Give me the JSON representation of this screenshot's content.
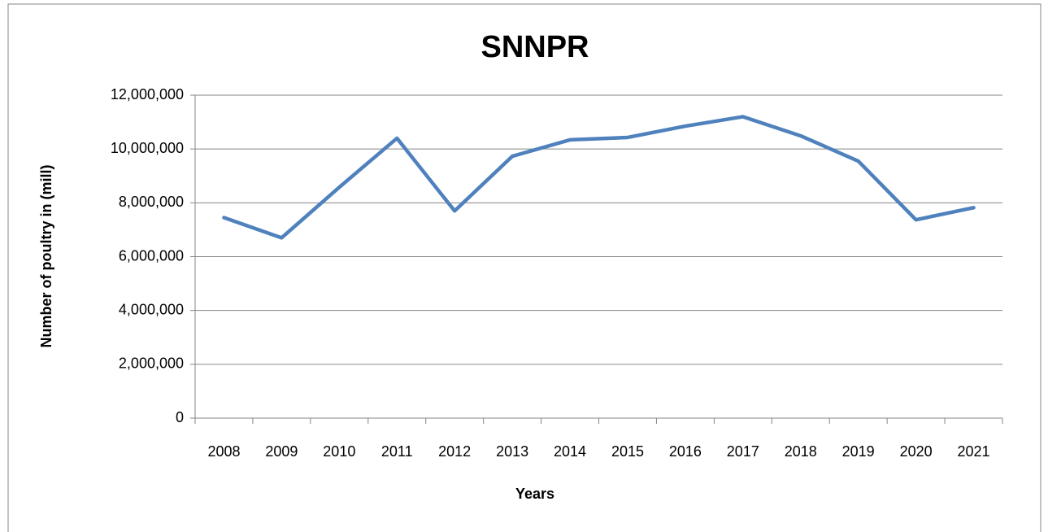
{
  "chart_data": {
    "type": "line",
    "title": "SNNPR",
    "x_label": "Years",
    "y_label": "Number of poultry in (mill)",
    "categories": [
      "2008",
      "2009",
      "2010",
      "2011",
      "2012",
      "2013",
      "2014",
      "2015",
      "2016",
      "2017",
      "2018",
      "2019",
      "2020",
      "2021"
    ],
    "series": [
      {
        "name": "SNNPR",
        "color": "#4f81bd",
        "values": [
          7450000,
          6700000,
          8580000,
          10400000,
          7700000,
          9730000,
          10340000,
          10430000,
          10850000,
          11200000,
          10490000,
          9550000,
          7370000,
          7820000
        ]
      }
    ],
    "ylim": [
      0,
      12000000
    ],
    "yticks": [
      0,
      {
        "value": 2000000,
        "label": "2,000,000"
      },
      {
        "value": 4000000,
        "label": "4,000,000"
      },
      {
        "value": 6000000,
        "label": "6,000,000"
      },
      {
        "value": 8000000,
        "label": "8,000,000"
      },
      {
        "value": 10000000,
        "label": "10,000,000"
      },
      {
        "value": 12000000,
        "label": "12,000,000"
      }
    ],
    "grid": true
  }
}
